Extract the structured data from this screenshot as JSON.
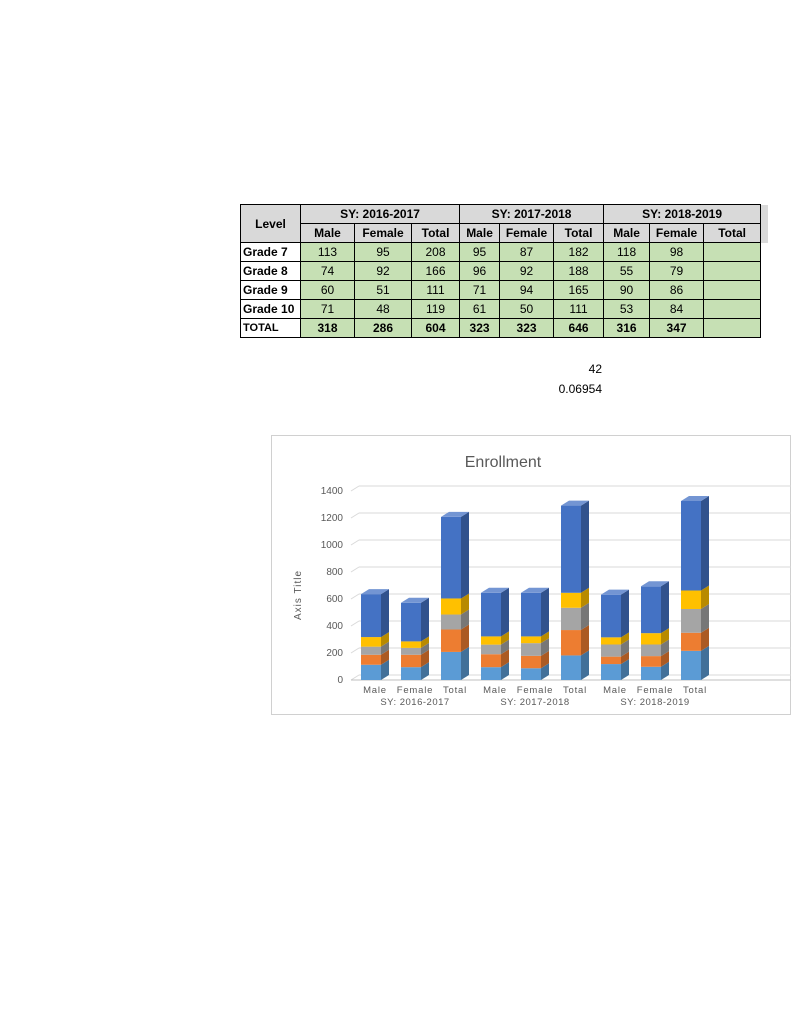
{
  "table": {
    "level_header": "Level",
    "school_years": [
      "SY: 2016-2017",
      "SY: 2017-2018",
      "SY: 2018-2019"
    ],
    "sub_headers": [
      "Male",
      "Female",
      "Total"
    ],
    "rows": [
      {
        "level": "Grade 7",
        "values": [
          113,
          95,
          208,
          95,
          87,
          182,
          118,
          98
        ]
      },
      {
        "level": "Grade 8",
        "values": [
          74,
          92,
          166,
          96,
          92,
          188,
          55,
          79
        ]
      },
      {
        "level": "Grade 9",
        "values": [
          60,
          51,
          111,
          71,
          94,
          165,
          90,
          86
        ]
      },
      {
        "level": "Grade 10",
        "values": [
          71,
          48,
          119,
          61,
          50,
          111,
          53,
          84
        ]
      },
      {
        "level": "TOTAL",
        "values": [
          318,
          286,
          604,
          323,
          323,
          646,
          316,
          347
        ]
      }
    ]
  },
  "notes": {
    "a": "42",
    "b": "0.06954"
  },
  "chart_data": {
    "type": "bar",
    "stacked": true,
    "three_d": true,
    "title": "Enrollment",
    "ylabel": "Axis Title",
    "ylim": [
      0,
      1400
    ],
    "yticks": [
      0,
      200,
      400,
      600,
      800,
      1000,
      1200,
      1400
    ],
    "categories": [
      "Male",
      "Female",
      "Total",
      "Male",
      "Female",
      "Total",
      "Male",
      "Female",
      "Total"
    ],
    "groups": [
      "SY: 2016-2017",
      "SY: 2017-2018",
      "SY: 2018-2019"
    ],
    "series": [
      {
        "color": "#5b9bd5",
        "values": [
          113,
          95,
          208,
          95,
          87,
          182,
          118,
          98,
          216
        ]
      },
      {
        "color": "#ed7d31",
        "values": [
          74,
          92,
          166,
          96,
          92,
          188,
          55,
          79,
          134
        ]
      },
      {
        "color": "#a5a5a5",
        "values": [
          60,
          51,
          111,
          71,
          94,
          165,
          90,
          86,
          176
        ]
      },
      {
        "color": "#ffc000",
        "values": [
          71,
          48,
          119,
          61,
          50,
          111,
          53,
          84,
          137
        ]
      },
      {
        "color": "#4472c4",
        "values": [
          318,
          286,
          604,
          323,
          323,
          646,
          316,
          347,
          663
        ]
      }
    ],
    "grid": true,
    "legend": "none"
  }
}
